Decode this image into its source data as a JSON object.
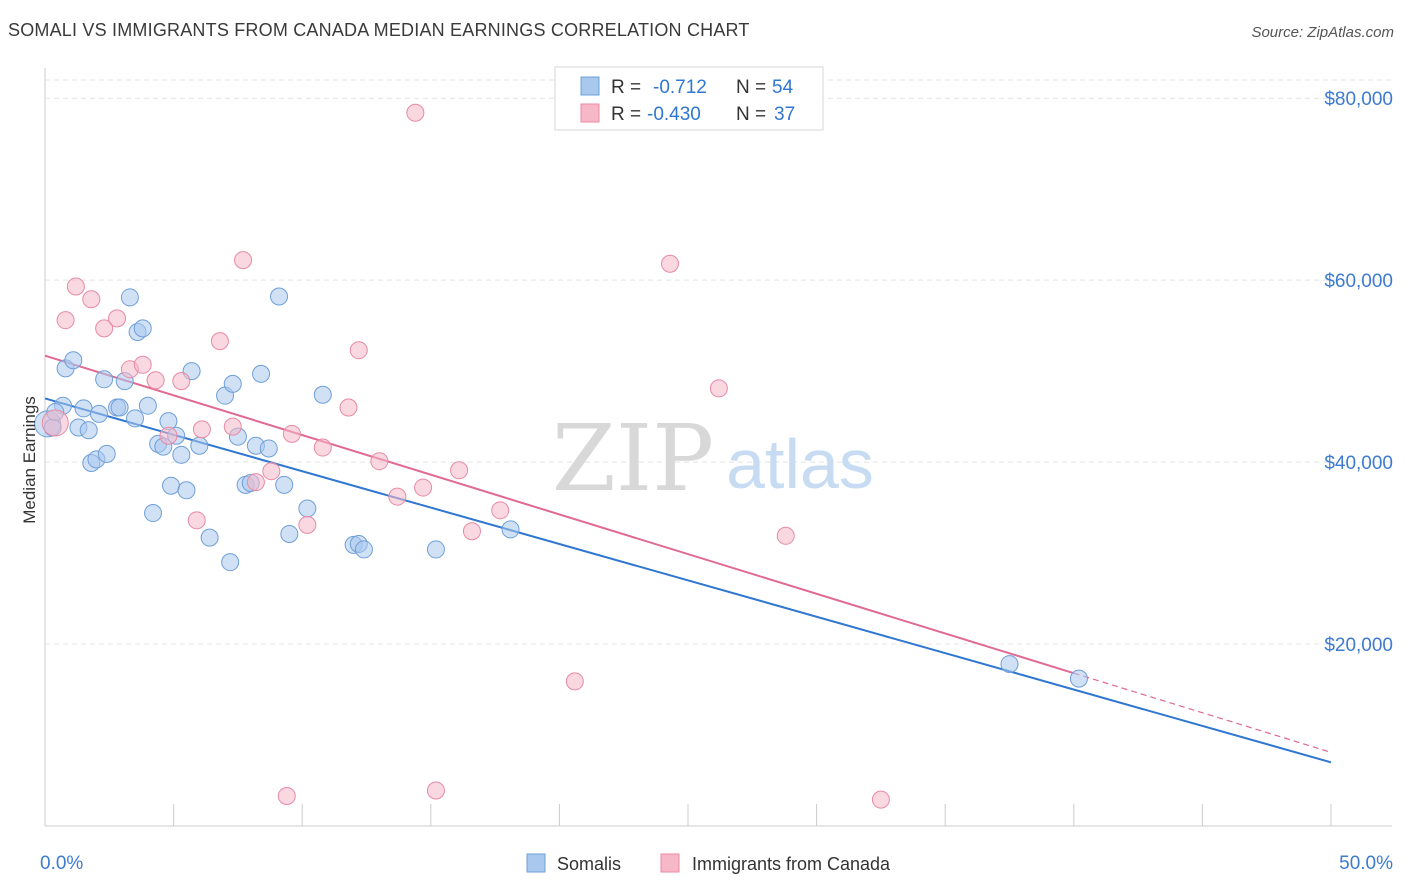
{
  "header": {
    "title": "SOMALI VS IMMIGRANTS FROM CANADA MEDIAN EARNINGS CORRELATION CHART",
    "source": "Source: ZipAtlas.com"
  },
  "watermark": {
    "zip": "ZIP",
    "atlas": "atlas"
  },
  "stats_legend": [
    {
      "r_label": "R =",
      "r_value": "-0.712",
      "n_label": "N =",
      "n_value": "54",
      "color": "#a9c8ee"
    },
    {
      "r_label": "R =",
      "r_value": "-0.430",
      "n_label": "N =",
      "n_value": "37",
      "color": "#f6b8c8"
    }
  ],
  "chart_data": {
    "type": "scatter",
    "title": "SOMALI VS IMMIGRANTS FROM CANADA MEDIAN EARNINGS CORRELATION CHART",
    "xlabel": "",
    "ylabel": "Median Earnings",
    "xlim": [
      0,
      50
    ],
    "ylim": [
      0,
      82000
    ],
    "x_tick_labels": [
      {
        "value": 0,
        "label": "0.0%"
      },
      {
        "value": 50,
        "label": "50.0%"
      }
    ],
    "y_ticks": [
      {
        "value": 20000,
        "label": "$20,000"
      },
      {
        "value": 40000,
        "label": "$40,000"
      },
      {
        "value": 60000,
        "label": "$60,000"
      },
      {
        "value": 80000,
        "label": "$80,000"
      }
    ],
    "grid": true,
    "legend_position": "bottom-center",
    "series": [
      {
        "name": "Somalis",
        "color": "#a9c8ee",
        "stroke": "#6f9fd8",
        "line_color": "#2f77d0",
        "trend": {
          "x": [
            0,
            50
          ],
          "y": [
            47000,
            7000
          ]
        },
        "points": [
          [
            0.1,
            44200
          ],
          [
            0.3,
            43800
          ],
          [
            0.7,
            46200
          ],
          [
            0.8,
            50300
          ],
          [
            1.1,
            51200
          ],
          [
            1.3,
            43800
          ],
          [
            1.5,
            45900
          ],
          [
            1.7,
            43500
          ],
          [
            1.8,
            39900
          ],
          [
            2.0,
            40300
          ],
          [
            2.1,
            45300
          ],
          [
            2.4,
            40900
          ],
          [
            2.3,
            49100
          ],
          [
            2.8,
            46000
          ],
          [
            2.9,
            46000
          ],
          [
            3.1,
            48900
          ],
          [
            3.3,
            58100
          ],
          [
            3.5,
            44800
          ],
          [
            3.6,
            54300
          ],
          [
            3.8,
            54700
          ],
          [
            4.0,
            46200
          ],
          [
            4.2,
            34400
          ],
          [
            4.4,
            42000
          ],
          [
            4.6,
            41700
          ],
          [
            4.8,
            44500
          ],
          [
            4.9,
            37400
          ],
          [
            5.1,
            42900
          ],
          [
            5.3,
            40800
          ],
          [
            5.5,
            36900
          ],
          [
            5.7,
            50000
          ],
          [
            6.0,
            41800
          ],
          [
            6.4,
            31700
          ],
          [
            7.0,
            47300
          ],
          [
            7.3,
            48600
          ],
          [
            7.5,
            42800
          ],
          [
            7.8,
            37500
          ],
          [
            8.0,
            37700
          ],
          [
            8.2,
            41800
          ],
          [
            8.4,
            49700
          ],
          [
            8.7,
            41500
          ],
          [
            7.2,
            29000
          ],
          [
            9.1,
            58200
          ],
          [
            9.3,
            37500
          ],
          [
            9.5,
            32100
          ],
          [
            10.2,
            34900
          ],
          [
            10.8,
            47400
          ],
          [
            12.0,
            30900
          ],
          [
            12.2,
            31000
          ],
          [
            12.4,
            30400
          ],
          [
            15.2,
            30400
          ],
          [
            18.1,
            32600
          ],
          [
            37.5,
            17800
          ],
          [
            40.2,
            16200
          ],
          [
            0.4,
            45500
          ]
        ]
      },
      {
        "name": "Immigrants from Canada",
        "color": "#f6b8c8",
        "stroke": "#e88aa5",
        "line_color": "#e06a92",
        "trend": {
          "x": [
            0,
            40
          ],
          "y": [
            51700,
            16800
          ]
        },
        "trend_dashed": {
          "x": [
            40,
            50
          ],
          "y": [
            16800,
            8100
          ]
        },
        "points": [
          [
            0.4,
            44300
          ],
          [
            0.8,
            55600
          ],
          [
            1.2,
            59300
          ],
          [
            1.8,
            57900
          ],
          [
            2.3,
            54700
          ],
          [
            2.8,
            55800
          ],
          [
            3.3,
            50200
          ],
          [
            3.8,
            50700
          ],
          [
            4.3,
            49000
          ],
          [
            4.8,
            42900
          ],
          [
            5.3,
            48900
          ],
          [
            5.9,
            33600
          ],
          [
            6.1,
            43600
          ],
          [
            6.8,
            53300
          ],
          [
            7.3,
            43900
          ],
          [
            7.7,
            62200
          ],
          [
            8.2,
            37800
          ],
          [
            8.8,
            39000
          ],
          [
            9.4,
            3300
          ],
          [
            9.6,
            43100
          ],
          [
            10.2,
            33100
          ],
          [
            10.8,
            41600
          ],
          [
            11.8,
            46000
          ],
          [
            12.2,
            52300
          ],
          [
            13.0,
            40100
          ],
          [
            13.7,
            36200
          ],
          [
            14.4,
            78400
          ],
          [
            14.7,
            37200
          ],
          [
            15.2,
            3900
          ],
          [
            16.1,
            39100
          ],
          [
            16.6,
            32400
          ],
          [
            17.7,
            34700
          ],
          [
            20.6,
            15900
          ],
          [
            24.3,
            61800
          ],
          [
            26.2,
            48100
          ],
          [
            28.8,
            31900
          ],
          [
            32.5,
            2900
          ]
        ]
      }
    ]
  }
}
